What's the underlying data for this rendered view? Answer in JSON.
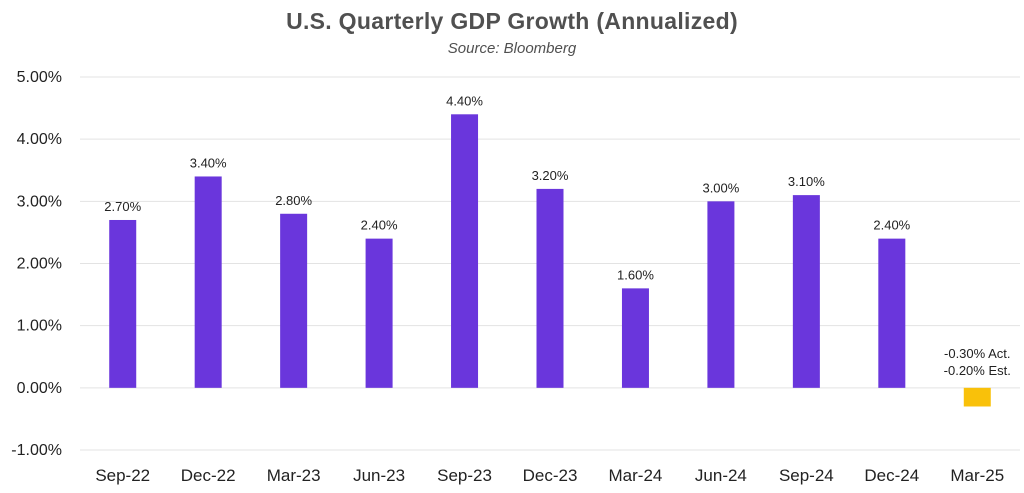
{
  "chart_data": {
    "type": "bar",
    "title": "U.S. Quarterly GDP Growth (Annualized)",
    "subtitle": "Source: Bloomberg",
    "categories": [
      "Sep-22",
      "Dec-22",
      "Mar-23",
      "Jun-23",
      "Sep-23",
      "Dec-23",
      "Mar-24",
      "Jun-24",
      "Sep-24",
      "Dec-24",
      "Mar-25"
    ],
    "values": [
      2.7,
      3.4,
      2.8,
      2.4,
      4.4,
      3.2,
      1.6,
      3.0,
      3.1,
      2.4,
      -0.3
    ],
    "data_labels": [
      "2.70%",
      "3.40%",
      "2.80%",
      "2.40%",
      "4.40%",
      "3.20%",
      "1.60%",
      "3.00%",
      "3.10%",
      "2.40%",
      ""
    ],
    "annotation": {
      "category": "Mar-25",
      "lines": [
        "-0.30% Act.",
        "-0.20% Est."
      ]
    },
    "bar_colors": {
      "default": "#6a36dc",
      "highlight": "#f9c10a"
    },
    "highlight_category": "Mar-25",
    "y_ticks": [
      "5.00%",
      "4.00%",
      "3.00%",
      "2.00%",
      "1.00%",
      "0.00%",
      "-1.00%"
    ],
    "y_tick_values": [
      5,
      4,
      3,
      2,
      1,
      0,
      -1
    ],
    "ylim": [
      -1,
      5
    ],
    "xlabel": "",
    "ylabel": "",
    "grid": true,
    "gridline_color": "#e3e3e3"
  }
}
